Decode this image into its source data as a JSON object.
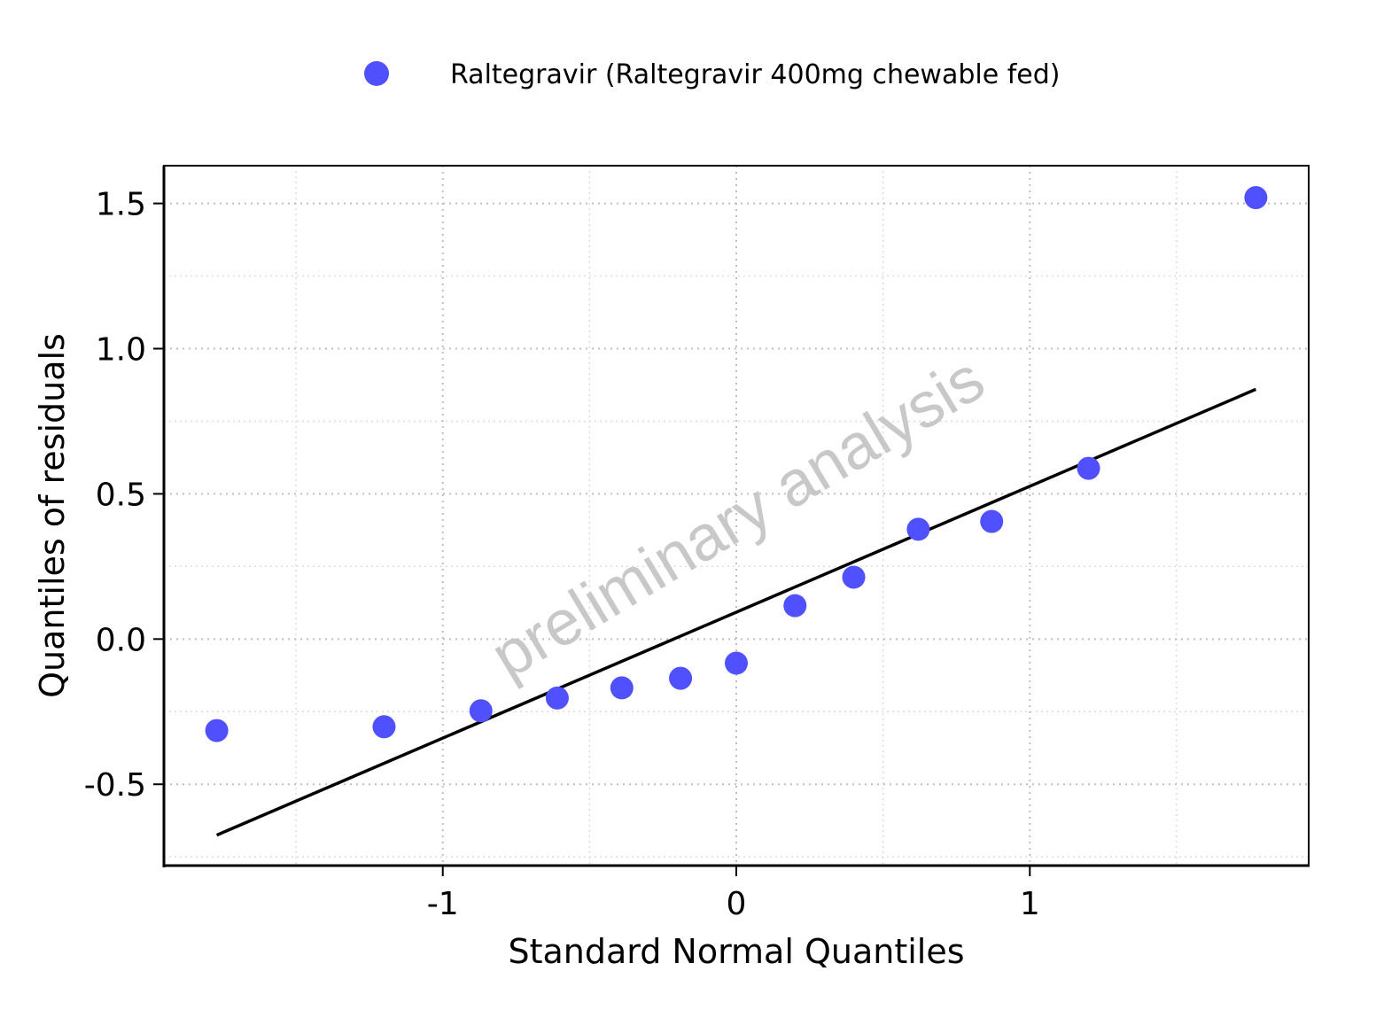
{
  "chart_data": {
    "type": "scatter",
    "title": "",
    "xlabel": "Standard Normal Quantiles",
    "ylabel": "Quantiles of residuals",
    "xlim": [
      -1.95,
      1.95
    ],
    "ylim": [
      -0.78,
      1.63
    ],
    "xticks": [
      -1,
      0,
      1
    ],
    "xtick_labels": [
      "-1",
      "0",
      "1"
    ],
    "yticks": [
      -0.5,
      0.0,
      0.5,
      1.0,
      1.5
    ],
    "ytick_labels": [
      "-0.5",
      "0.0",
      "0.5",
      "1.0",
      "1.5"
    ],
    "grid": true,
    "legend_position": "top",
    "watermark": "preliminary analysis",
    "series": [
      {
        "name": "Raltegravir (Raltegravir 400mg chewable fed)",
        "color": "#5050ff",
        "points": [
          {
            "x": -1.77,
            "y": -0.315
          },
          {
            "x": -1.2,
            "y": -0.302
          },
          {
            "x": -0.87,
            "y": -0.247
          },
          {
            "x": -0.61,
            "y": -0.203
          },
          {
            "x": -0.39,
            "y": -0.168
          },
          {
            "x": -0.19,
            "y": -0.135
          },
          {
            "x": 0.0,
            "y": -0.083
          },
          {
            "x": 0.2,
            "y": 0.115
          },
          {
            "x": 0.4,
            "y": 0.213
          },
          {
            "x": 0.62,
            "y": 0.378
          },
          {
            "x": 0.87,
            "y": 0.405
          },
          {
            "x": 1.2,
            "y": 0.588
          },
          {
            "x": 1.77,
            "y": 1.52
          }
        ]
      }
    ],
    "reference_line": {
      "color": "#000000",
      "x": [
        -1.77,
        1.77
      ],
      "y": [
        -0.675,
        0.86
      ]
    }
  }
}
